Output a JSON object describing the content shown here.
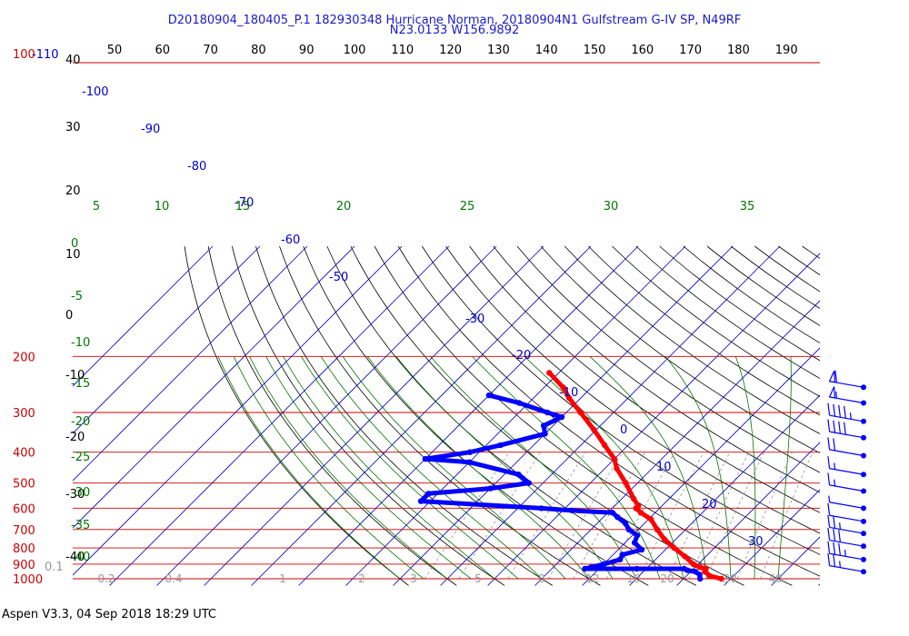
{
  "title_line1": "D20180904_180405_P.1 182930348 Hurricane Norman, 20180904N1 Gulfstream G-IV SP, N49RF",
  "title_line2": "N23.0133 W156.9892",
  "footer": "Aspen V3.3, 04 Sep 2018  18:29 UTC",
  "colors": {
    "pressure_lines": "#cc0000",
    "isotherms": "#0000cc",
    "dry_adiabats": "#000000",
    "moist_adiabats": "#007700",
    "mixing_ratio": "#888888",
    "temperature_trace": "#ff0000",
    "dewpoint_trace": "#0000ff",
    "wind_barbs": "#0000ff"
  },
  "chart_data": {
    "type": "skew-T log-P",
    "pressure_axis_label_top": "100",
    "pressure_axis_label_top_extra": "-110",
    "pressure_ticks": [
      100,
      200,
      300,
      400,
      500,
      600,
      700,
      800,
      900,
      1000
    ],
    "top_axis_ticks": [
      50,
      60,
      70,
      80,
      90,
      100,
      110,
      120,
      130,
      140,
      150,
      160,
      170,
      180,
      190
    ],
    "left_temp_labels": [
      "40",
      "30",
      "20",
      "10",
      "0",
      "-10",
      "-20",
      "-30",
      "-40"
    ],
    "isotherm_labels": [
      "-100",
      "-90",
      "-80",
      "-70",
      "-60",
      "-50",
      "-30",
      "-20",
      "-10",
      "0",
      "10",
      "20",
      "30"
    ],
    "theta_e_labels": [
      "5",
      "10",
      "15",
      "20",
      "25",
      "30",
      "35"
    ],
    "moist_labels": [
      "0",
      "-5",
      "-10",
      "-15",
      "-20",
      "-25",
      "-30",
      "-35",
      "-40"
    ],
    "mixing_ratio_labels": [
      "0.1",
      "0.2",
      "0.4",
      "1",
      "2",
      "3",
      "5",
      "8",
      "12",
      "16",
      "20",
      "30",
      "40"
    ],
    "temperature_trace": {
      "name": "Temperature",
      "points": [
        {
          "p": 1000,
          "t": 28.0
        },
        {
          "p": 980,
          "t": 25.0
        },
        {
          "p": 950,
          "t": 23.0
        },
        {
          "p": 930,
          "t": 22.6
        },
        {
          "p": 920,
          "t": 21.0
        },
        {
          "p": 900,
          "t": 19.0
        },
        {
          "p": 850,
          "t": 15.5
        },
        {
          "p": 800,
          "t": 11.5
        },
        {
          "p": 750,
          "t": 7.5
        },
        {
          "p": 700,
          "t": 4.0
        },
        {
          "p": 650,
          "t": 0.5
        },
        {
          "p": 620,
          "t": -3.0
        },
        {
          "p": 600,
          "t": -5.0
        },
        {
          "p": 590,
          "t": -5.0
        },
        {
          "p": 560,
          "t": -7.5
        },
        {
          "p": 500,
          "t": -12.5
        },
        {
          "p": 450,
          "t": -17.5
        },
        {
          "p": 420,
          "t": -20.0
        },
        {
          "p": 380,
          "t": -25.0
        },
        {
          "p": 340,
          "t": -30.5
        },
        {
          "p": 300,
          "t": -37.0
        },
        {
          "p": 270,
          "t": -42.5
        },
        {
          "p": 250,
          "t": -46.0
        },
        {
          "p": 225,
          "t": -52.0
        }
      ]
    },
    "dewpoint_trace": {
      "name": "Dewpoint",
      "points": [
        {
          "p": 1000,
          "t": 23.5
        },
        {
          "p": 970,
          "t": 22.5
        },
        {
          "p": 950,
          "t": 21.0
        },
        {
          "p": 940,
          "t": 19.0
        },
        {
          "p": 930,
          "t": 18.0
        },
        {
          "p": 930,
          "t": 8.0
        },
        {
          "p": 930,
          "t": -3.0
        },
        {
          "p": 920,
          "t": -2.0
        },
        {
          "p": 900,
          "t": 0.0
        },
        {
          "p": 870,
          "t": 2.5
        },
        {
          "p": 840,
          "t": 2.0
        },
        {
          "p": 810,
          "t": 5.0
        },
        {
          "p": 770,
          "t": 2.0
        },
        {
          "p": 730,
          "t": 1.0
        },
        {
          "p": 700,
          "t": -2.0
        },
        {
          "p": 670,
          "t": -4.0
        },
        {
          "p": 640,
          "t": -7.0
        },
        {
          "p": 620,
          "t": -9.0
        },
        {
          "p": 610,
          "t": -18.0
        },
        {
          "p": 600,
          "t": -25.0
        },
        {
          "p": 570,
          "t": -52.0
        },
        {
          "p": 540,
          "t": -52.0
        },
        {
          "p": 520,
          "t": -40.0
        },
        {
          "p": 500,
          "t": -33.0
        },
        {
          "p": 470,
          "t": -37.0
        },
        {
          "p": 430,
          "t": -50.0
        },
        {
          "p": 420,
          "t": -60.0
        },
        {
          "p": 400,
          "t": -52.0
        },
        {
          "p": 380,
          "t": -47.0
        },
        {
          "p": 350,
          "t": -40.0
        },
        {
          "p": 330,
          "t": -42.0
        },
        {
          "p": 310,
          "t": -40.0
        },
        {
          "p": 300,
          "t": -44.0
        },
        {
          "p": 280,
          "t": -52.0
        },
        {
          "p": 265,
          "t": -60.0
        }
      ]
    },
    "wind_barbs": [
      {
        "p": 250,
        "speed_kt": 60
      },
      {
        "p": 280,
        "speed_kt": 55
      },
      {
        "p": 320,
        "speed_kt": 45
      },
      {
        "p": 360,
        "speed_kt": 40
      },
      {
        "p": 410,
        "speed_kt": 20
      },
      {
        "p": 470,
        "speed_kt": 15
      },
      {
        "p": 530,
        "speed_kt": 15
      },
      {
        "p": 600,
        "speed_kt": 5
      },
      {
        "p": 660,
        "speed_kt": 10
      },
      {
        "p": 720,
        "speed_kt": 25
      },
      {
        "p": 790,
        "speed_kt": 30
      },
      {
        "p": 870,
        "speed_kt": 35
      },
      {
        "p": 950,
        "speed_kt": 25
      }
    ],
    "surface_label": "0.1"
  }
}
